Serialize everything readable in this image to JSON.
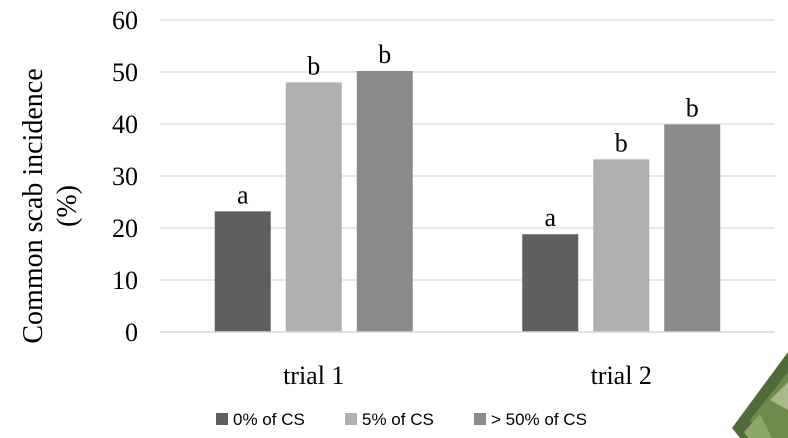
{
  "chart_data": {
    "type": "bar",
    "categories": [
      "trial 1",
      "trial 2"
    ],
    "series": [
      {
        "name": "0% of CS",
        "color": "#5f5f5f",
        "values": [
          23.2,
          18.8
        ],
        "labels": [
          "a",
          "a"
        ]
      },
      {
        "name": "5% of CS",
        "color": "#b0b0b0",
        "values": [
          48.0,
          33.2
        ],
        "labels": [
          "b",
          "b"
        ]
      },
      {
        "name": "> 50% of CS",
        "color": "#8a8a8a",
        "values": [
          50.2,
          39.9
        ],
        "labels": [
          "b",
          "b"
        ]
      }
    ],
    "ylabel_lines": [
      "Common scab incidence",
      "(%)"
    ],
    "ylim": [
      0,
      60
    ],
    "yticks": [
      0,
      10,
      20,
      30,
      40,
      50,
      60
    ],
    "grid": true,
    "legend_position": "bottom"
  }
}
